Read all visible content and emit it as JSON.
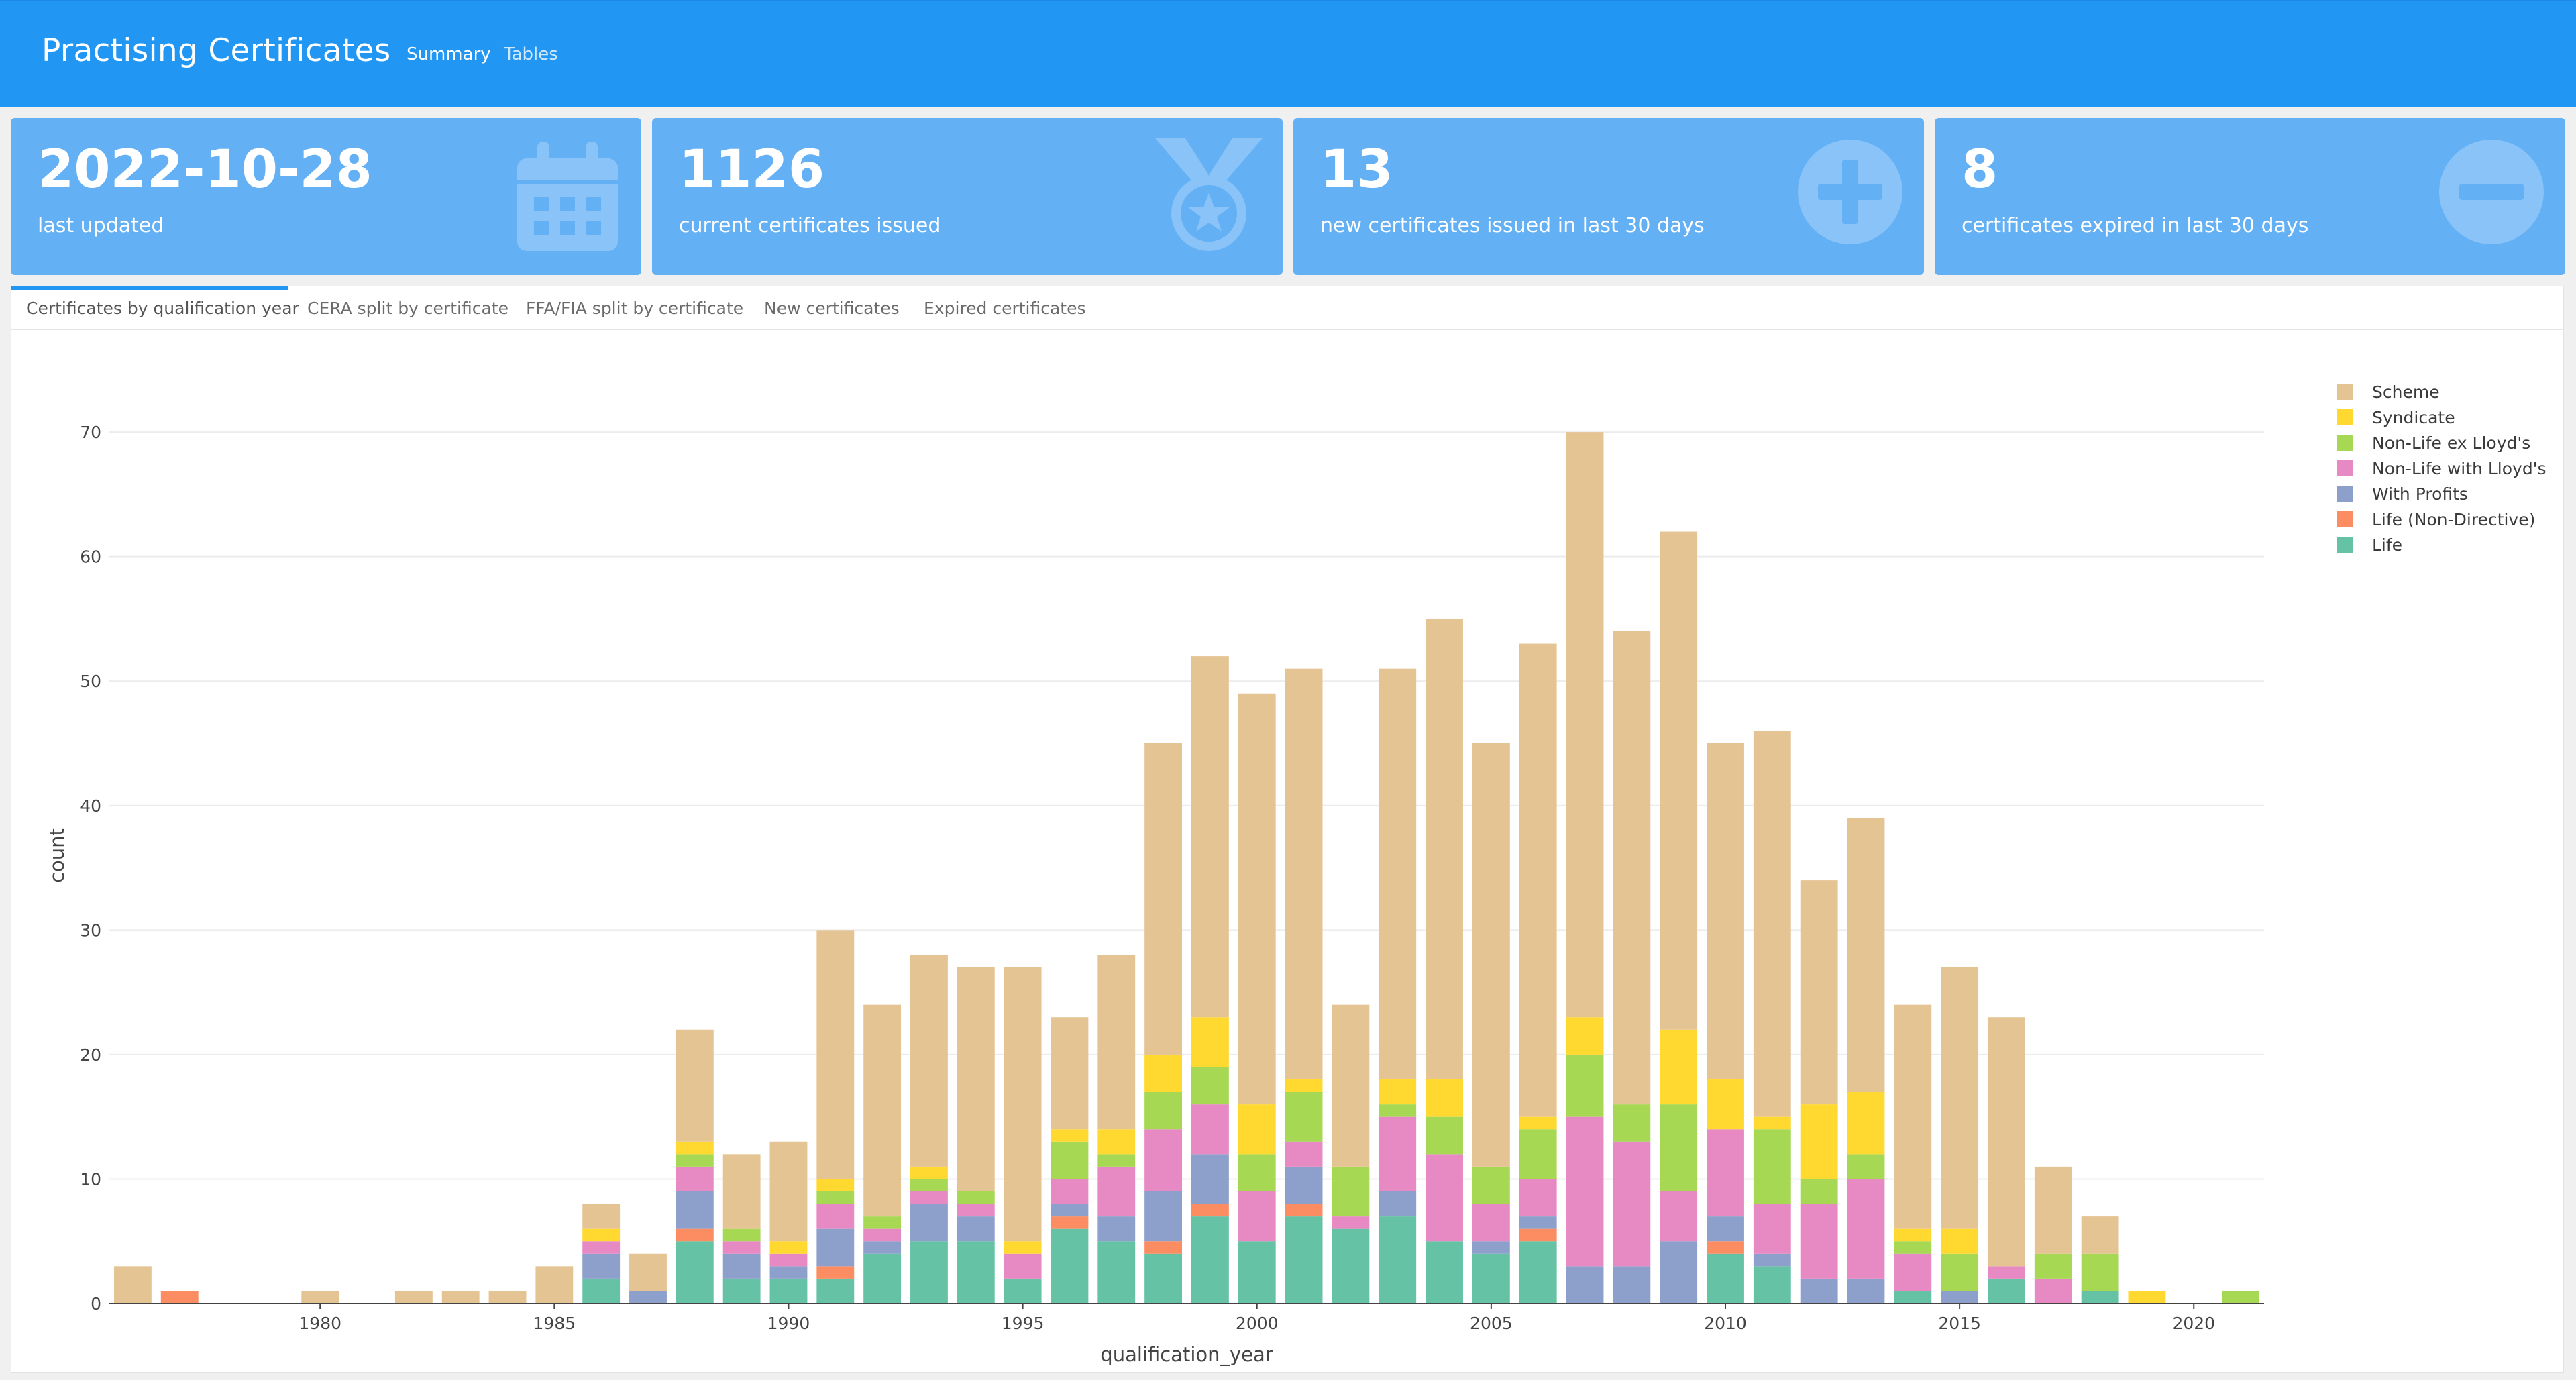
{
  "navbar": {
    "brand": "Practising Certificates",
    "links": [
      "Summary",
      "Tables"
    ]
  },
  "cards": [
    {
      "value": "2022-10-28",
      "label": "last updated",
      "icon": "calendar-icon"
    },
    {
      "value": "1126",
      "label": "current certificates issued",
      "icon": "medal-icon"
    },
    {
      "value": "13",
      "label": "new certificates issued in last 30 days",
      "icon": "plus-circle-icon"
    },
    {
      "value": "8",
      "label": "certificates expired in last 30 days",
      "icon": "minus-circle-icon"
    }
  ],
  "tabs": [
    "Certificates by qualification year",
    "CERA split by certificate",
    "FFA/FIA split by certificate",
    "New certificates",
    "Expired certificates"
  ],
  "colors": {
    "navbar": "#2196f3",
    "card": "#63b0f4"
  },
  "chart_data": {
    "type": "bar",
    "stacked": true,
    "xlabel": "qualification_year",
    "ylabel": "count",
    "xlim": [
      1975.5,
      2021.5
    ],
    "ylim": [
      0,
      72
    ],
    "x_ticks": [
      1980,
      1985,
      1990,
      1995,
      2000,
      2005,
      2010,
      2015,
      2020
    ],
    "y_ticks": [
      0,
      10,
      20,
      30,
      40,
      50,
      60,
      70
    ],
    "grid": true,
    "legend_position": "top-right",
    "categories": [
      1976,
      1977,
      1978,
      1979,
      1980,
      1981,
      1982,
      1983,
      1984,
      1985,
      1986,
      1987,
      1988,
      1989,
      1990,
      1991,
      1992,
      1993,
      1994,
      1995,
      1996,
      1997,
      1998,
      1999,
      2000,
      2001,
      2002,
      2003,
      2004,
      2005,
      2006,
      2007,
      2008,
      2009,
      2010,
      2011,
      2012,
      2013,
      2014,
      2015,
      2016,
      2017,
      2018,
      2019,
      2020,
      2021
    ],
    "series": [
      {
        "name": "Life",
        "color": "#66c2a5",
        "values": [
          0,
          0,
          0,
          0,
          0,
          0,
          0,
          0,
          0,
          0,
          2,
          0,
          5,
          2,
          2,
          2,
          4,
          5,
          5,
          2,
          6,
          5,
          4,
          7,
          5,
          7,
          6,
          7,
          5,
          4,
          5,
          0,
          0,
          0,
          4,
          3,
          0,
          0,
          1,
          0,
          2,
          0,
          1,
          0,
          0,
          0
        ]
      },
      {
        "name": "Life (Non-Directive)",
        "color": "#fc8d62",
        "values": [
          0,
          1,
          0,
          0,
          0,
          0,
          0,
          0,
          0,
          0,
          0,
          0,
          1,
          0,
          0,
          1,
          0,
          0,
          0,
          0,
          1,
          0,
          1,
          1,
          0,
          1,
          0,
          0,
          0,
          0,
          1,
          0,
          0,
          0,
          1,
          0,
          0,
          0,
          0,
          0,
          0,
          0,
          0,
          0,
          0,
          0
        ]
      },
      {
        "name": "With Profits",
        "color": "#8da0cb",
        "values": [
          0,
          0,
          0,
          0,
          0,
          0,
          0,
          0,
          0,
          0,
          2,
          1,
          3,
          2,
          1,
          3,
          1,
          3,
          2,
          0,
          1,
          2,
          4,
          4,
          0,
          3,
          0,
          2,
          0,
          1,
          1,
          3,
          3,
          5,
          2,
          1,
          2,
          2,
          0,
          1,
          0,
          0,
          0,
          0,
          0,
          0
        ]
      },
      {
        "name": "Non-Life with Lloyd's",
        "color": "#e78ac3",
        "values": [
          0,
          0,
          0,
          0,
          0,
          0,
          0,
          0,
          0,
          0,
          1,
          0,
          2,
          1,
          1,
          2,
          1,
          1,
          1,
          2,
          2,
          4,
          5,
          4,
          4,
          2,
          1,
          6,
          7,
          3,
          3,
          12,
          10,
          4,
          7,
          4,
          6,
          8,
          3,
          0,
          1,
          2,
          0,
          0,
          0,
          0
        ]
      },
      {
        "name": "Non-Life ex Lloyd's",
        "color": "#a6d854",
        "values": [
          0,
          0,
          0,
          0,
          0,
          0,
          0,
          0,
          0,
          0,
          0,
          0,
          1,
          1,
          0,
          1,
          1,
          1,
          1,
          0,
          3,
          1,
          3,
          3,
          3,
          4,
          4,
          1,
          3,
          3,
          4,
          5,
          3,
          7,
          0,
          6,
          2,
          2,
          1,
          3,
          0,
          2,
          3,
          0,
          0,
          1
        ]
      },
      {
        "name": "Syndicate",
        "color": "#ffd92f",
        "values": [
          0,
          0,
          0,
          0,
          0,
          0,
          0,
          0,
          0,
          0,
          1,
          0,
          1,
          0,
          1,
          1,
          0,
          1,
          0,
          1,
          1,
          2,
          3,
          4,
          4,
          1,
          0,
          2,
          3,
          0,
          1,
          3,
          0,
          6,
          4,
          1,
          6,
          5,
          1,
          2,
          0,
          0,
          0,
          1,
          0,
          0
        ]
      },
      {
        "name": "Scheme",
        "color": "#e5c494",
        "values": [
          3,
          0,
          0,
          0,
          1,
          0,
          1,
          1,
          1,
          3,
          2,
          3,
          9,
          6,
          8,
          20,
          17,
          17,
          18,
          22,
          9,
          14,
          25,
          29,
          33,
          33,
          13,
          33,
          37,
          34,
          38,
          47,
          38,
          40,
          27,
          31,
          18,
          22,
          18,
          21,
          20,
          7,
          3,
          0,
          0,
          0
        ]
      }
    ]
  }
}
